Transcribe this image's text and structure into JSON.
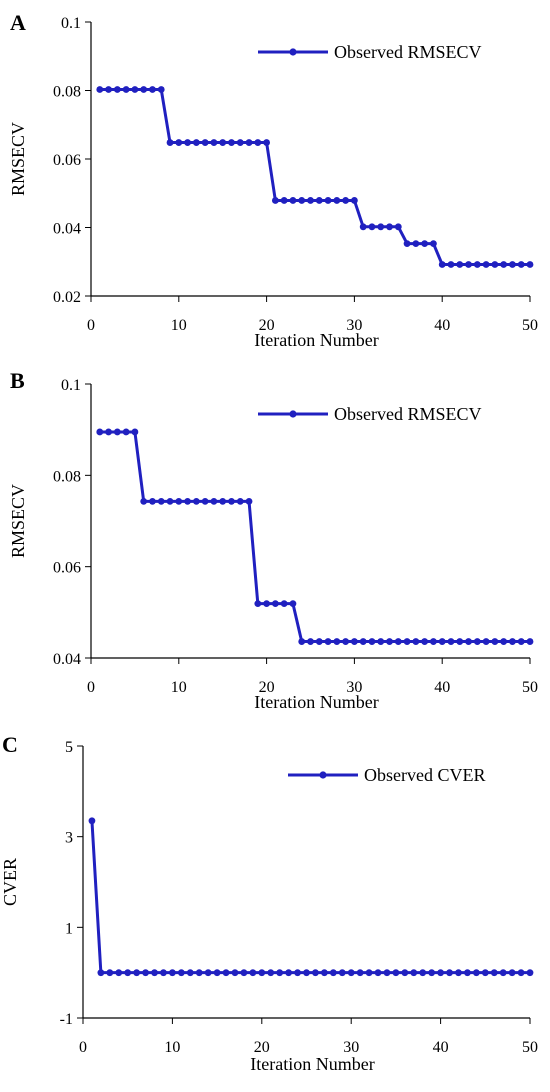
{
  "colors": {
    "series": "#2020c0",
    "axis": "#000000"
  },
  "chart_data": [
    {
      "panel_label": "A",
      "type": "line",
      "xlabel": "Iteration Number",
      "ylabel": "RMSECV",
      "xlim": [
        0,
        50
      ],
      "ylim": [
        0.02,
        0.1
      ],
      "xticks": [
        "0",
        "10",
        "20",
        "30",
        "40",
        "50"
      ],
      "yticks": [
        "0.02",
        "0.04",
        "0.06",
        "0.08",
        "0.1"
      ],
      "legend": {
        "position": "top-right"
      },
      "series": [
        {
          "name": "Observed RMSECV",
          "x": [
            1,
            2,
            3,
            4,
            5,
            6,
            7,
            8,
            9,
            10,
            11,
            12,
            13,
            14,
            15,
            16,
            17,
            18,
            19,
            20,
            21,
            22,
            23,
            24,
            25,
            26,
            27,
            28,
            29,
            30,
            31,
            32,
            33,
            34,
            35,
            36,
            37,
            38,
            39,
            40,
            41,
            42,
            43,
            44,
            45,
            46,
            47,
            48,
            49,
            50
          ],
          "y": [
            0.0803,
            0.0803,
            0.0803,
            0.0803,
            0.0803,
            0.0803,
            0.0803,
            0.0803,
            0.0648,
            0.0648,
            0.0648,
            0.0648,
            0.0648,
            0.0648,
            0.0648,
            0.0648,
            0.0648,
            0.0648,
            0.0648,
            0.0648,
            0.0479,
            0.0479,
            0.0479,
            0.0479,
            0.0479,
            0.0479,
            0.0479,
            0.0479,
            0.0479,
            0.0479,
            0.0402,
            0.0402,
            0.0402,
            0.0402,
            0.0402,
            0.0353,
            0.0353,
            0.0353,
            0.0353,
            0.0292,
            0.0292,
            0.0292,
            0.0292,
            0.0292,
            0.0292,
            0.0292,
            0.0292,
            0.0292,
            0.0292,
            0.0292
          ]
        }
      ]
    },
    {
      "panel_label": "B",
      "type": "line",
      "xlabel": "Iteration Number",
      "ylabel": "RMSECV",
      "xlim": [
        0,
        50
      ],
      "ylim": [
        0.04,
        0.1
      ],
      "xticks": [
        "0",
        "10",
        "20",
        "30",
        "40",
        "50"
      ],
      "yticks": [
        "0.04",
        "0.06",
        "0.08",
        "0.1"
      ],
      "legend": {
        "position": "top-right"
      },
      "series": [
        {
          "name": "Observed RMSECV",
          "x": [
            1,
            2,
            3,
            4,
            5,
            6,
            7,
            8,
            9,
            10,
            11,
            12,
            13,
            14,
            15,
            16,
            17,
            18,
            19,
            20,
            21,
            22,
            23,
            24,
            25,
            26,
            27,
            28,
            29,
            30,
            31,
            32,
            33,
            34,
            35,
            36,
            37,
            38,
            39,
            40,
            41,
            42,
            43,
            44,
            45,
            46,
            47,
            48,
            49,
            50
          ],
          "y": [
            0.0895,
            0.0895,
            0.0895,
            0.0895,
            0.0895,
            0.0743,
            0.0743,
            0.0743,
            0.0743,
            0.0743,
            0.0743,
            0.0743,
            0.0743,
            0.0743,
            0.0743,
            0.0743,
            0.0743,
            0.0743,
            0.0519,
            0.0519,
            0.0519,
            0.0519,
            0.0519,
            0.0436,
            0.0436,
            0.0436,
            0.0436,
            0.0436,
            0.0436,
            0.0436,
            0.0436,
            0.0436,
            0.0436,
            0.0436,
            0.0436,
            0.0436,
            0.0436,
            0.0436,
            0.0436,
            0.0436,
            0.0436,
            0.0436,
            0.0436,
            0.0436,
            0.0436,
            0.0436,
            0.0436,
            0.0436,
            0.0436,
            0.0436
          ]
        }
      ]
    },
    {
      "panel_label": "C",
      "type": "line",
      "xlabel": "Iteration Number",
      "ylabel": "CVER",
      "xlim": [
        0,
        50
      ],
      "ylim": [
        -1,
        5
      ],
      "xticks": [
        "0",
        "10",
        "20",
        "30",
        "40",
        "50"
      ],
      "yticks": [
        "-1",
        "1",
        "3",
        "5"
      ],
      "legend": {
        "position": "top-right"
      },
      "series": [
        {
          "name": "Observed CVER",
          "x": [
            1,
            2,
            3,
            4,
            5,
            6,
            7,
            8,
            9,
            10,
            11,
            12,
            13,
            14,
            15,
            16,
            17,
            18,
            19,
            20,
            21,
            22,
            23,
            24,
            25,
            26,
            27,
            28,
            29,
            30,
            31,
            32,
            33,
            34,
            35,
            36,
            37,
            38,
            39,
            40,
            41,
            42,
            43,
            44,
            45,
            46,
            47,
            48,
            49,
            50
          ],
          "y": [
            3.35,
            0,
            0,
            0,
            0,
            0,
            0,
            0,
            0,
            0,
            0,
            0,
            0,
            0,
            0,
            0,
            0,
            0,
            0,
            0,
            0,
            0,
            0,
            0,
            0,
            0,
            0,
            0,
            0,
            0,
            0,
            0,
            0,
            0,
            0,
            0,
            0,
            0,
            0,
            0,
            0,
            0,
            0,
            0,
            0,
            0,
            0,
            0,
            0,
            0
          ]
        }
      ]
    }
  ]
}
